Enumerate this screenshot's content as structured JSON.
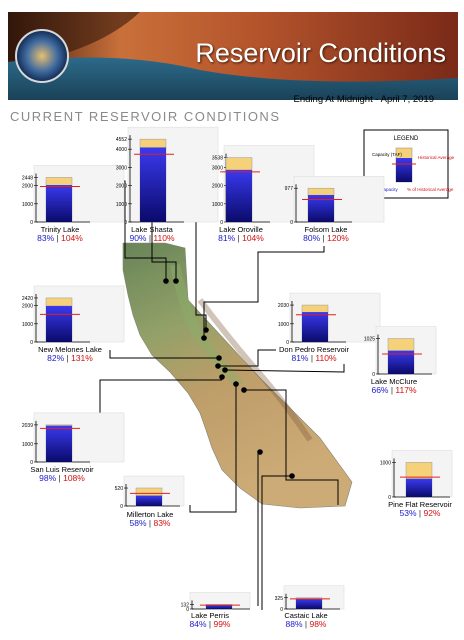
{
  "header": {
    "title": "Reservoir Conditions",
    "seal_text": "DEPARTMENT OF WATER RESOURCES · STATE OF CALIFORNIA",
    "subtitle": "Ending At Midnight - April 7, 2019",
    "section_title": "CURRENT RESERVOIR CONDITIONS"
  },
  "legend": {
    "title": "LEGEND",
    "capacity_label": "Capacity (TAF)",
    "historical_label": "Historical Average",
    "pct_capacity_label": "% of Capacity",
    "pct_historical_label": "% of Historical Average"
  },
  "colors": {
    "capacity_fill": "#f5d27a",
    "storage_top": "#3a3af0",
    "storage_bottom": "#0a0a6a",
    "historical_line": "#e02020",
    "pct_capacity_text": "#1a1ac8",
    "pct_historical_text": "#d01010"
  },
  "chart_data": {
    "type": "bar",
    "title": "Current Reservoir Conditions",
    "date": "April 7, 2019",
    "reservoirs": [
      {
        "name": "Trinity Lake",
        "capacity": 2448,
        "ticks": [
          0,
          1000,
          2000,
          2448
        ],
        "pct_capacity": 83,
        "pct_historical": 104,
        "pct_capacity_label": "83%",
        "pct_historical_label": "104%"
      },
      {
        "name": "Lake Shasta",
        "capacity": 4552,
        "ticks": [
          0,
          1000,
          2000,
          3000,
          4000,
          4552
        ],
        "pct_capacity": 90,
        "pct_historical": 110,
        "pct_capacity_label": "90%",
        "pct_historical_label": "110%"
      },
      {
        "name": "Lake Oroville",
        "capacity": 3538,
        "ticks": [
          0,
          1000,
          2000,
          3000,
          3538
        ],
        "pct_capacity": 81,
        "pct_historical": 104,
        "pct_capacity_label": "81%",
        "pct_historical_label": "104%"
      },
      {
        "name": "Folsom Lake",
        "capacity": 977,
        "ticks": [
          0,
          977
        ],
        "pct_capacity": 80,
        "pct_historical": 120,
        "pct_capacity_label": "80%",
        "pct_historical_label": "120%"
      },
      {
        "name": "New Melones Lake",
        "capacity": 2420,
        "ticks": [
          0,
          1000,
          2000,
          2420
        ],
        "pct_capacity": 82,
        "pct_historical": 131,
        "pct_capacity_label": "82%",
        "pct_historical_label": "131%"
      },
      {
        "name": "Don Pedro Reservoir",
        "capacity": 2030,
        "ticks": [
          0,
          1000,
          2030
        ],
        "pct_capacity": 81,
        "pct_historical": 110,
        "pct_capacity_label": "81%",
        "pct_historical_label": "110%"
      },
      {
        "name": "Lake McClure",
        "capacity": 1025,
        "ticks": [
          0,
          1025
        ],
        "pct_capacity": 66,
        "pct_historical": 117,
        "pct_capacity_label": "66%",
        "pct_historical_label": "117%"
      },
      {
        "name": "San Luis Reservoir",
        "capacity": 2039,
        "ticks": [
          0,
          1000,
          2039
        ],
        "pct_capacity": 98,
        "pct_historical": 108,
        "pct_capacity_label": "98%",
        "pct_historical_label": "108%"
      },
      {
        "name": "Millerton Lake",
        "capacity": 520,
        "ticks": [
          0,
          520
        ],
        "pct_capacity": 58,
        "pct_historical": 83,
        "pct_capacity_label": "58%",
        "pct_historical_label": "83%"
      },
      {
        "name": "Pine Flat Reservoir",
        "capacity": 1000,
        "ticks": [
          0,
          1000
        ],
        "pct_capacity": 53,
        "pct_historical": 92,
        "pct_capacity_label": "53%",
        "pct_historical_label": "92%"
      },
      {
        "name": "Lake Perris",
        "capacity": 132,
        "ticks": [
          0,
          132
        ],
        "pct_capacity": 84,
        "pct_historical": 99,
        "pct_capacity_label": "84%",
        "pct_historical_label": "99%"
      },
      {
        "name": "Castaic Lake",
        "capacity": 325,
        "ticks": [
          0,
          325
        ],
        "pct_capacity": 88,
        "pct_historical": 98,
        "pct_capacity_label": "88%",
        "pct_historical_label": "98%"
      }
    ]
  }
}
